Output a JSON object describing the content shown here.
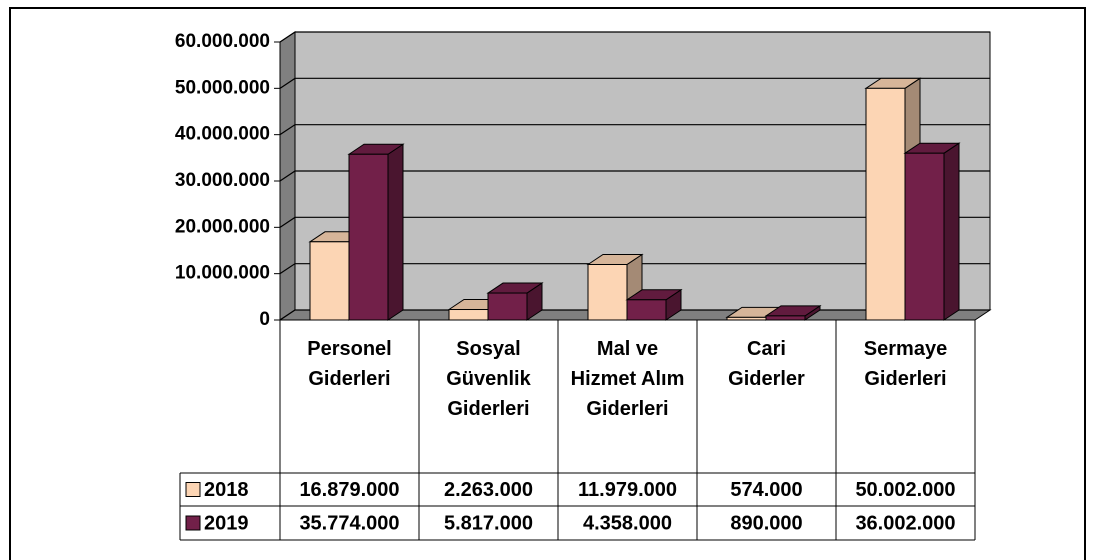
{
  "chart_data": {
    "type": "bar3d",
    "categories": [
      "Personel Giderleri",
      "Sosyal Güvenlik Giderleri",
      "Mal ve Hizmet Alım Giderleri",
      "Cari Giderler",
      "Sermaye Giderleri"
    ],
    "series": [
      {
        "name": "2018",
        "color": "#fcd5b4",
        "values": [
          16879000,
          2263000,
          11979000,
          574000,
          50002000
        ],
        "value_labels": [
          "16.879.000",
          "2.263.000",
          "11.979.000",
          "574.000",
          "50.002.000"
        ]
      },
      {
        "name": "2019",
        "color": "#722049",
        "values": [
          35774000,
          5817000,
          4358000,
          890000,
          36002000
        ],
        "value_labels": [
          "35.774.000",
          "5.817.000",
          "4.358.000",
          "890.000",
          "36.002.000"
        ]
      }
    ],
    "ylim": [
      0,
      60000000
    ],
    "yticks": [
      0,
      {
        "value": 10000000,
        "label": "10.000.000"
      },
      {
        "value": 20000000,
        "label": "20.000.000"
      },
      {
        "value": 30000000,
        "label": "30.000.000"
      },
      {
        "value": 40000000,
        "label": "40.000.000"
      },
      {
        "value": 50000000,
        "label": "50.000.000"
      },
      {
        "value": 60000000,
        "label": "60.000.000"
      }
    ],
    "grid": true
  }
}
